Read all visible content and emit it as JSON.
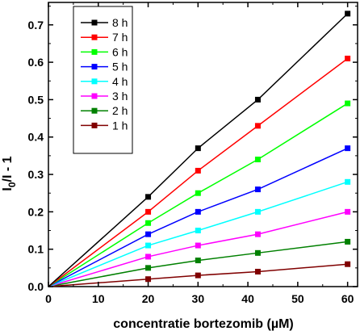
{
  "chart_data": {
    "type": "line",
    "xlabel": "concentratie bortezomib (µM)",
    "ylabel_main": "I",
    "ylabel_sub": "0",
    "ylabel_rest": "/I - 1",
    "xlim": [
      0,
      62
    ],
    "ylim": [
      0,
      0.76
    ],
    "x_ticks": [
      0,
      10,
      20,
      30,
      40,
      50,
      60
    ],
    "x_tick_labels": [
      "0",
      "10",
      "20",
      "30",
      "40",
      "50",
      "60"
    ],
    "y_ticks": [
      0.0,
      0.1,
      0.2,
      0.3,
      0.4,
      0.5,
      0.6,
      0.7
    ],
    "y_tick_labels": [
      "0.0",
      "0.1",
      "0.2",
      "0.3",
      "0.4",
      "0.5",
      "0.6",
      "0.7"
    ],
    "legend_position": "top-left",
    "x": [
      0,
      20,
      30,
      42,
      60
    ],
    "series": [
      {
        "name": "8 h",
        "color": "#000000",
        "values": [
          0,
          0.24,
          0.37,
          0.5,
          0.73
        ]
      },
      {
        "name": "7 h",
        "color": "#ff0000",
        "values": [
          0,
          0.2,
          0.31,
          0.43,
          0.61
        ]
      },
      {
        "name": "6 h",
        "color": "#00ff00",
        "values": [
          0,
          0.17,
          0.25,
          0.34,
          0.49
        ]
      },
      {
        "name": "5 h",
        "color": "#0000ff",
        "values": [
          0,
          0.14,
          0.2,
          0.26,
          0.37
        ]
      },
      {
        "name": "4 h",
        "color": "#00ffff",
        "values": [
          0,
          0.11,
          0.15,
          0.2,
          0.28
        ]
      },
      {
        "name": "3 h",
        "color": "#ff00ff",
        "values": [
          0,
          0.08,
          0.11,
          0.14,
          0.2
        ]
      },
      {
        "name": "2 h",
        "color": "#008000",
        "values": [
          0,
          0.05,
          0.07,
          0.09,
          0.12
        ]
      },
      {
        "name": "1 h",
        "color": "#800000",
        "values": [
          0,
          0.02,
          0.03,
          0.04,
          0.06
        ]
      }
    ]
  }
}
